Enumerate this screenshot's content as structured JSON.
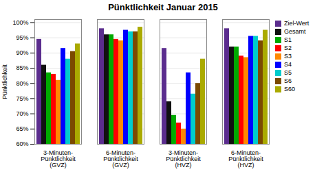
{
  "chart_data": {
    "type": "bar",
    "title": "Pünktlichkeit Januar 2015",
    "ylabel": "Pünktlichkeit",
    "categories": [
      "3-Minuten-\nPünktlichkeit\n(GVZ)",
      "6-Minuten-\nPünktlichkeit\n(GVZ)",
      "3-Minuten-\nPünktlichkeit\n(HVZ)",
      "6-Minuten-\nPünktlichkeit\n(HVZ)"
    ],
    "series": [
      {
        "name": "Ziel-Wert",
        "color": "#5b2d8e",
        "values": [
          94.5,
          98.0,
          91.5,
          98.0
        ]
      },
      {
        "name": "Gesamt",
        "color": "#111111",
        "values": [
          86.0,
          96.0,
          74.0,
          92.0
        ]
      },
      {
        "name": "S1",
        "color": "#00aa00",
        "values": [
          83.5,
          96.0,
          69.5,
          92.0
        ]
      },
      {
        "name": "S2",
        "color": "#ff0000",
        "values": [
          83.0,
          94.5,
          67.0,
          89.0
        ]
      },
      {
        "name": "S3",
        "color": "#ff8800",
        "values": [
          81.0,
          94.0,
          65.0,
          88.5
        ]
      },
      {
        "name": "S4",
        "color": "#0000ff",
        "values": [
          91.5,
          97.5,
          83.5,
          95.5
        ]
      },
      {
        "name": "S5",
        "color": "#00cccc",
        "values": [
          88.0,
          97.0,
          76.5,
          95.5
        ]
      },
      {
        "name": "S6",
        "color": "#7b4a00",
        "values": [
          90.5,
          97.0,
          80.0,
          94.0
        ]
      },
      {
        "name": "S60",
        "color": "#aaaa00",
        "values": [
          93.0,
          98.5,
          88.0,
          97.5
        ]
      }
    ],
    "ylim": [
      60,
      101
    ],
    "yticks": [
      {
        "value": 60,
        "label": "60%"
      },
      {
        "value": 65,
        "label": "65%"
      },
      {
        "value": 70,
        "label": "70%"
      },
      {
        "value": 75,
        "label": "75%"
      },
      {
        "value": 80,
        "label": "80%"
      },
      {
        "value": 85,
        "label": "85%"
      },
      {
        "value": 90,
        "label": "90%"
      },
      {
        "value": 95,
        "label": "95%"
      },
      {
        "value": 100,
        "label": "100%"
      }
    ],
    "grid": true,
    "legend": "upper right"
  }
}
